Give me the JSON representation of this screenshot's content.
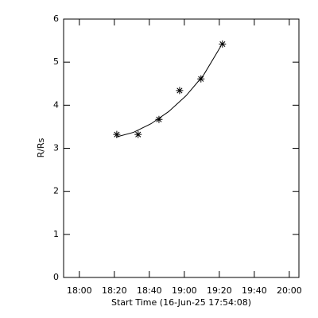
{
  "chart_data": {
    "type": "scatter",
    "x_label": "Start Time (16-Jun-25 17:54:08)",
    "y_label": "R/Rs",
    "x": [
      1101.4,
      1113.6,
      1125.5,
      1137.3,
      1149.5,
      1161.8
    ],
    "values": [
      3.32,
      3.32,
      3.67,
      4.34,
      4.61,
      5.42
    ],
    "color": "#000000",
    "marker": "asterisk",
    "fit": {
      "x": [
        1101,
        1111,
        1121,
        1131,
        1141,
        1151,
        1161
      ],
      "values": [
        3.26,
        3.37,
        3.57,
        3.85,
        4.22,
        4.7,
        5.38
      ]
    },
    "xlim": [
      1071,
      1205.5
    ],
    "xticks": [
      {
        "value": 1080,
        "label": "18:00"
      },
      {
        "value": 1100,
        "label": "18:20"
      },
      {
        "value": 1120,
        "label": "18:40"
      },
      {
        "value": 1140,
        "label": "19:00"
      },
      {
        "value": 1160,
        "label": "19:20"
      },
      {
        "value": 1180,
        "label": "19:40"
      },
      {
        "value": 1200,
        "label": "20:00"
      }
    ],
    "ylim": [
      0,
      6
    ],
    "yticks": [
      0,
      1,
      2,
      3,
      4,
      5,
      6
    ],
    "grid": false
  }
}
